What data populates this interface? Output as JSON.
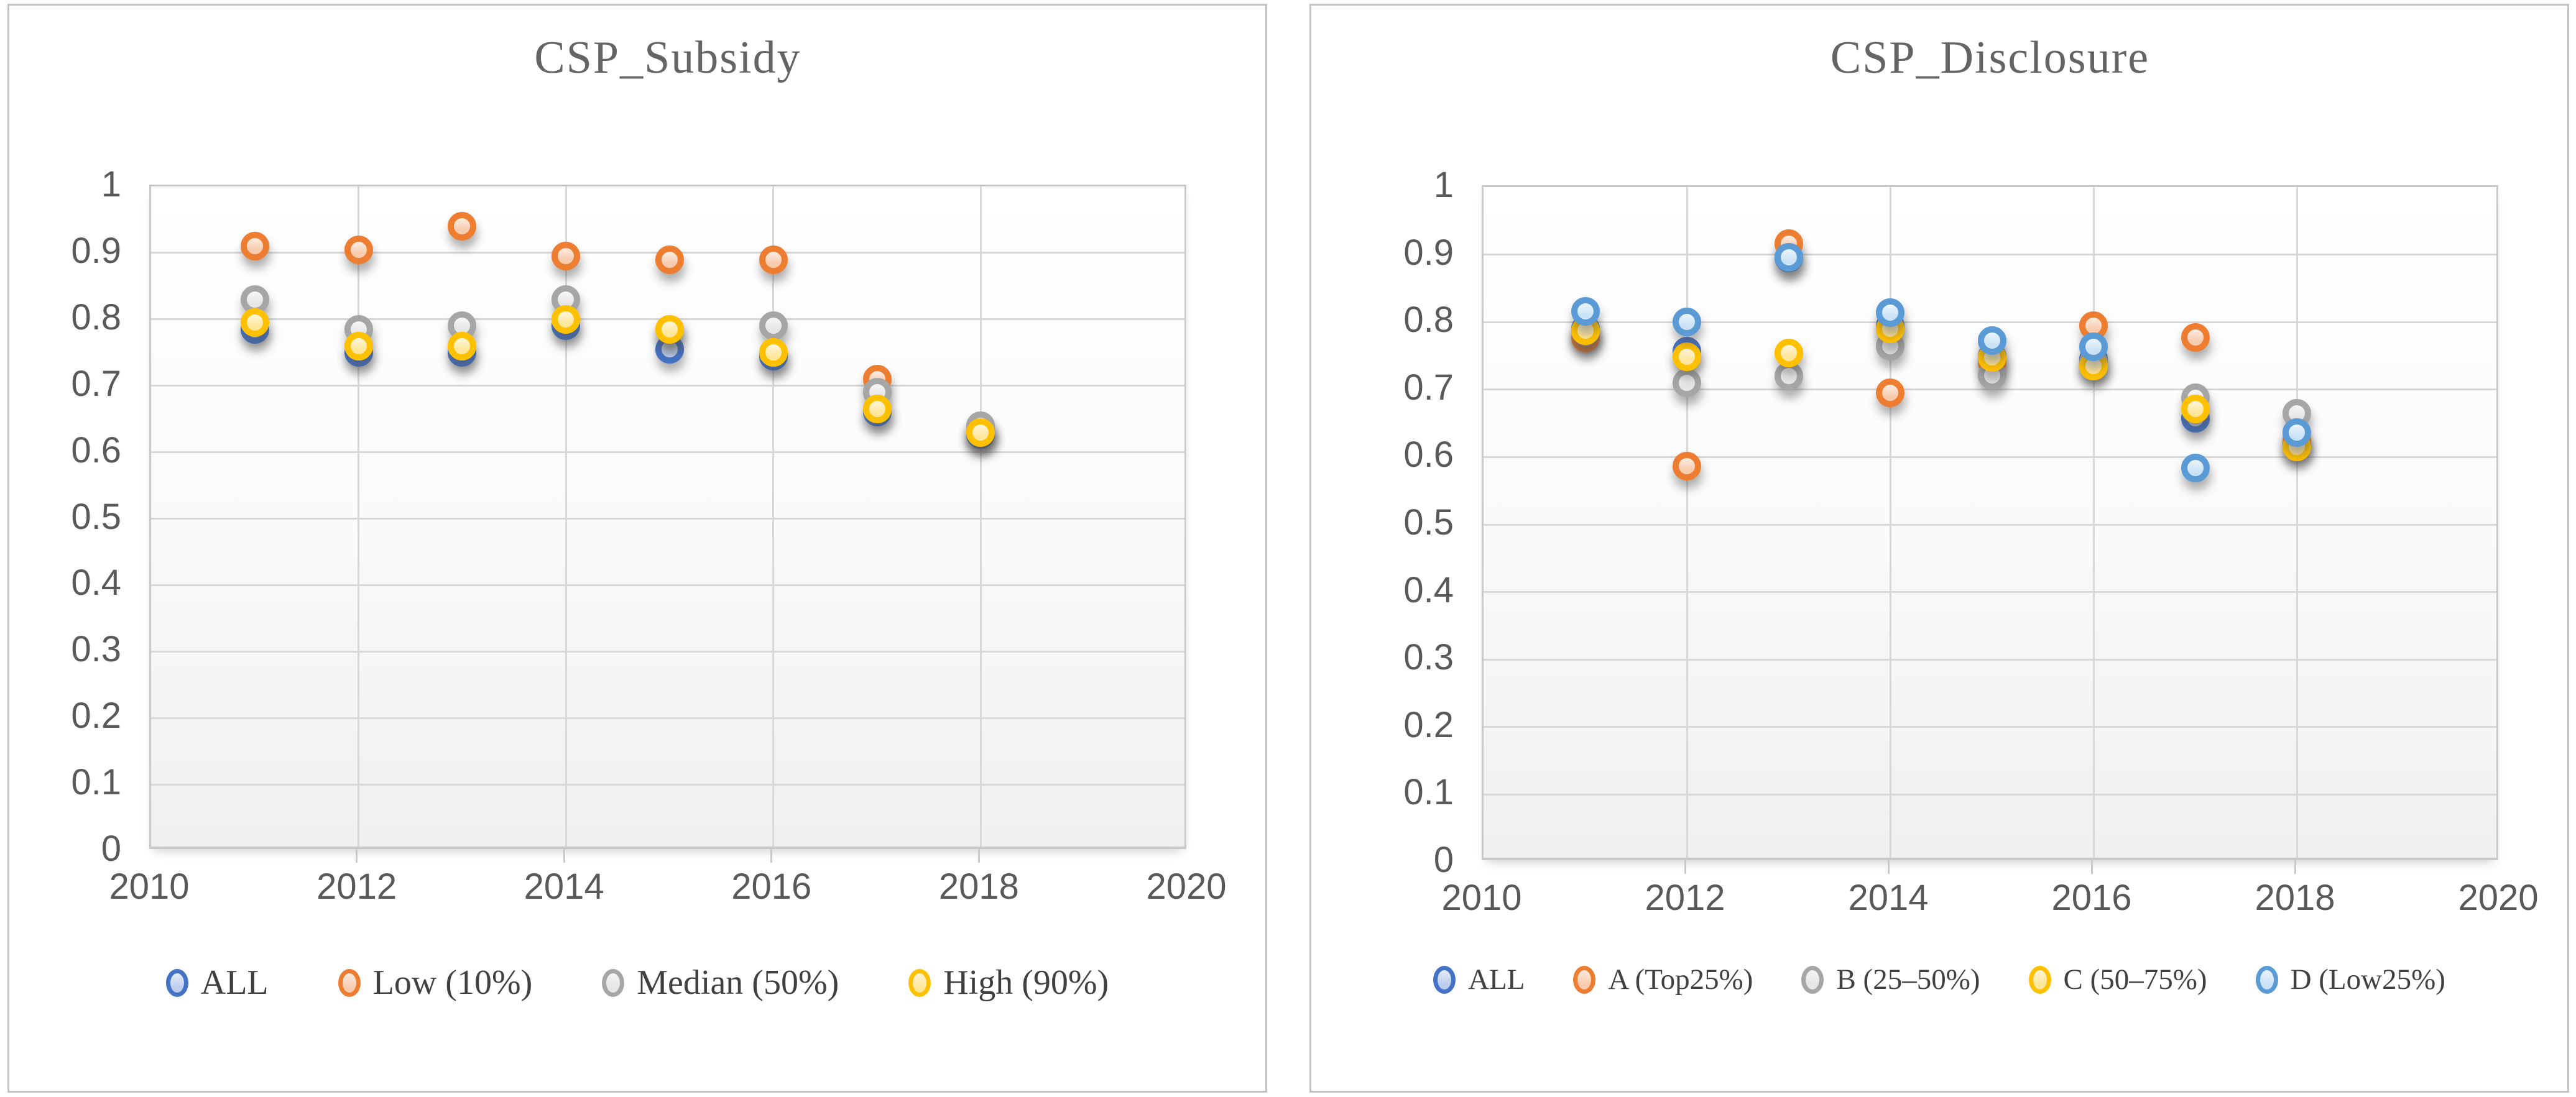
{
  "chart_data": [
    {
      "type": "scatter",
      "title": "CSP_Subsidy",
      "x": [
        2011,
        2012,
        2013,
        2014,
        2015,
        2016,
        2017,
        2018
      ],
      "series": [
        {
          "name": "ALL",
          "ring": "#4472C4",
          "fill": "#BDCDEE",
          "values": [
            0.785,
            0.75,
            0.75,
            0.79,
            0.755,
            0.745,
            0.66,
            0.627
          ]
        },
        {
          "name": "Low (10%)",
          "ring": "#ED7D31",
          "fill": "#F8CBAD",
          "values": [
            0.91,
            0.905,
            0.94,
            0.895,
            0.89,
            0.89,
            0.71,
            0.633
          ]
        },
        {
          "name": "Median (50%)",
          "ring": "#A6A6A6",
          "fill": "#E7E6E6",
          "values": [
            0.83,
            0.785,
            0.79,
            0.83,
            0.785,
            0.79,
            0.69,
            0.64
          ]
        },
        {
          "name": "High (90%)",
          "ring": "#FFC000",
          "fill": "#FFE699",
          "values": [
            0.795,
            0.76,
            0.76,
            0.8,
            0.785,
            0.75,
            0.665,
            0.63
          ]
        }
      ],
      "xlabel": "",
      "ylabel": "",
      "xlim": [
        2010,
        2020
      ],
      "ylim": [
        0,
        1
      ],
      "x_ticks": [
        "2010",
        "2012",
        "2014",
        "2016",
        "2018",
        "2020"
      ],
      "y_ticks": [
        "1",
        "0.9",
        "0.8",
        "0.7",
        "0.6",
        "0.5",
        "0.4",
        "0.3",
        "0.2",
        "0.1",
        "0"
      ],
      "grid": true,
      "legend_position": "bottom"
    },
    {
      "type": "scatter",
      "title": "CSP_Disclosure",
      "x": [
        2011,
        2012,
        2013,
        2014,
        2015,
        2016,
        2017,
        2018
      ],
      "series": [
        {
          "name": "ALL",
          "ring": "#4472C4",
          "fill": "#BDCDEE",
          "values": [
            0.79,
            0.757,
            0.895,
            0.795,
            0.75,
            0.745,
            0.657,
            0.62
          ]
        },
        {
          "name": "A (Top25%)",
          "ring": "#ED7D31",
          "fill": "#F8CBAD",
          "values": [
            0.776,
            0.587,
            0.916,
            0.695,
            0.74,
            0.795,
            0.777,
            0.625
          ]
        },
        {
          "name": "B (25–50%)",
          "ring": "#A6A6A6",
          "fill": "#E7E6E6",
          "values": [
            0.786,
            0.71,
            0.72,
            0.764,
            0.721,
            0.74,
            0.688,
            0.665
          ]
        },
        {
          "name": "C (50–75%)",
          "ring": "#FFC000",
          "fill": "#FFE699",
          "values": [
            0.787,
            0.749,
            0.754,
            0.79,
            0.748,
            0.735,
            0.671,
            0.615
          ]
        },
        {
          "name": "D (Low25%)",
          "ring": "#5B9BD5",
          "fill": "#C9E2F6",
          "values": [
            0.816,
            0.8,
            0.896,
            0.814,
            0.773,
            0.763,
            0.584,
            0.636
          ]
        }
      ],
      "xlabel": "",
      "ylabel": "",
      "xlim": [
        2010,
        2020
      ],
      "ylim": [
        0,
        1
      ],
      "x_ticks": [
        "2010",
        "2012",
        "2014",
        "2016",
        "2018",
        "2020"
      ],
      "y_ticks": [
        "1",
        "0.9",
        "0.8",
        "0.7",
        "0.6",
        "0.5",
        "0.4",
        "0.3",
        "0.2",
        "0.1",
        "0"
      ],
      "grid": true,
      "legend_position": "bottom"
    }
  ]
}
